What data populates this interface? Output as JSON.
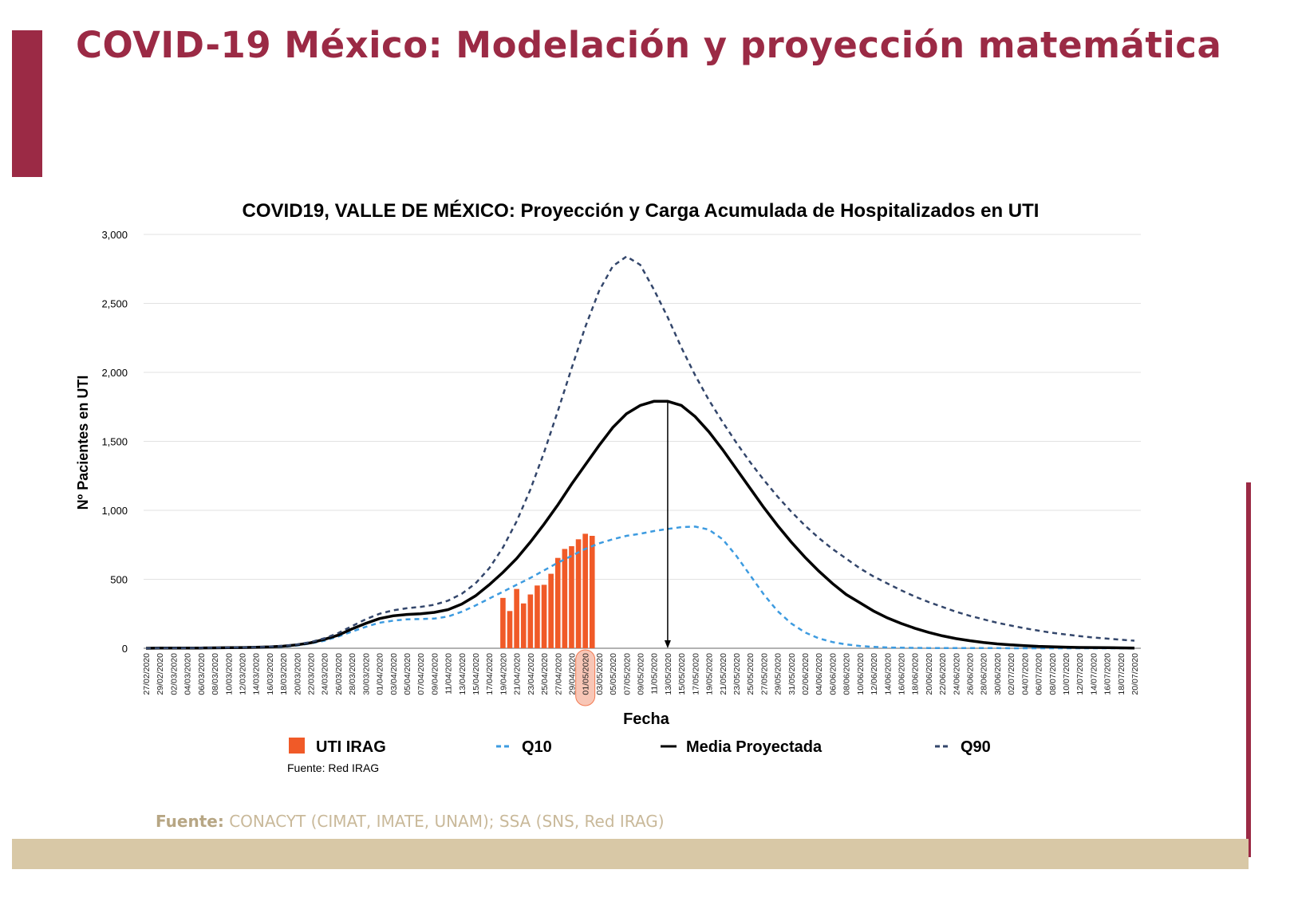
{
  "slide": {
    "title": "COVID-19 México: Modelación y proyección matemática",
    "source_label": "Fuente:",
    "source_text": " CONACYT (CIMAT, IMATE, UNAM);   SSA (SNS, Red IRAG)"
  },
  "colors": {
    "accent": "#9b2a45",
    "bars": "#f05a28",
    "q10": "#3d9be0",
    "media": "#000000",
    "q90": "#33466b"
  },
  "chart_data": {
    "type": "line",
    "title": "COVID19, VALLE DE MÉXICO: Proyección y Carga Acumulada de Hospitalizados en UTI",
    "xlabel": "Fecha",
    "ylabel": "Nº Pacientes en UTI",
    "ylim": [
      0,
      3000
    ],
    "yticks": [
      "0",
      "500",
      "1,000",
      "1,500",
      "2,000",
      "2,500",
      "3,000"
    ],
    "grid": true,
    "legend_placement": "bottom",
    "x": [
      "27/02/2020",
      "29/02/2020",
      "02/03/2020",
      "04/03/2020",
      "06/03/2020",
      "08/03/2020",
      "10/03/2020",
      "12/03/2020",
      "14/03/2020",
      "16/03/2020",
      "18/03/2020",
      "20/03/2020",
      "22/03/2020",
      "24/03/2020",
      "26/03/2020",
      "28/03/2020",
      "30/03/2020",
      "01/04/2020",
      "03/04/2020",
      "05/04/2020",
      "07/04/2020",
      "09/04/2020",
      "11/04/2020",
      "13/04/2020",
      "15/04/2020",
      "17/04/2020",
      "19/04/2020",
      "21/04/2020",
      "23/04/2020",
      "25/04/2020",
      "27/04/2020",
      "29/04/2020",
      "01/05/2020",
      "03/05/2020",
      "05/05/2020",
      "07/05/2020",
      "09/05/2020",
      "11/05/2020",
      "13/05/2020",
      "15/05/2020",
      "17/05/2020",
      "19/05/2020",
      "21/05/2020",
      "23/05/2020",
      "25/05/2020",
      "27/05/2020",
      "29/05/2020",
      "31/05/2020",
      "02/06/2020",
      "04/06/2020",
      "06/06/2020",
      "08/06/2020",
      "10/06/2020",
      "12/06/2020",
      "14/06/2020",
      "16/06/2020",
      "18/06/2020",
      "20/06/2020",
      "22/06/2020",
      "24/06/2020",
      "26/06/2020",
      "28/06/2020",
      "30/06/2020",
      "02/07/2020",
      "04/07/2020",
      "06/07/2020",
      "08/07/2020",
      "10/07/2020",
      "12/07/2020",
      "14/07/2020",
      "16/07/2020",
      "18/07/2020",
      "20/07/2020"
    ],
    "highlighted_tick": "01/05/2020",
    "peak_marker": {
      "date": "13/05/2020",
      "value": 1790
    },
    "bars": {
      "name": "UTI IRAG",
      "note": "Fuente: Red IRAG",
      "dates": [
        "19/04/2020",
        "20/04/2020",
        "21/04/2020",
        "22/04/2020",
        "23/04/2020",
        "24/04/2020",
        "25/04/2020",
        "26/04/2020",
        "27/04/2020",
        "28/04/2020",
        "29/04/2020",
        "30/04/2020",
        "01/05/2020",
        "02/05/2020"
      ],
      "values": [
        365,
        270,
        430,
        325,
        390,
        455,
        460,
        540,
        655,
        720,
        740,
        790,
        830,
        815
      ]
    },
    "series": [
      {
        "name": "Q10",
        "style": "dashed",
        "values": [
          0,
          0,
          1,
          1,
          2,
          2,
          3,
          4,
          5,
          7,
          10,
          20,
          35,
          55,
          85,
          120,
          155,
          185,
          200,
          210,
          212,
          215,
          230,
          265,
          310,
          360,
          410,
          460,
          510,
          565,
          620,
          670,
          720,
          760,
          790,
          815,
          830,
          850,
          865,
          878,
          882,
          860,
          790,
          670,
          530,
          390,
          270,
          180,
          115,
          72,
          45,
          28,
          17,
          10,
          6,
          4,
          3,
          2,
          2,
          1,
          1,
          1,
          1,
          0,
          0,
          0,
          0,
          0,
          0,
          0,
          0,
          0,
          0
        ]
      },
      {
        "name": "Media Proyectada",
        "style": "solid",
        "values": [
          0,
          1,
          1,
          2,
          2,
          3,
          4,
          5,
          7,
          10,
          15,
          25,
          40,
          65,
          95,
          140,
          180,
          215,
          235,
          245,
          250,
          260,
          280,
          320,
          380,
          460,
          550,
          650,
          770,
          900,
          1040,
          1190,
          1330,
          1470,
          1600,
          1700,
          1760,
          1790,
          1790,
          1760,
          1680,
          1570,
          1440,
          1300,
          1160,
          1020,
          890,
          770,
          660,
          560,
          470,
          390,
          330,
          270,
          220,
          180,
          145,
          115,
          90,
          70,
          55,
          42,
          32,
          25,
          19,
          14,
          11,
          8,
          6,
          5,
          4,
          3,
          2
        ]
      },
      {
        "name": "Q90",
        "style": "dashed",
        "values": [
          0,
          1,
          1,
          2,
          3,
          4,
          5,
          6,
          8,
          12,
          18,
          28,
          45,
          72,
          110,
          160,
          210,
          250,
          275,
          290,
          300,
          315,
          345,
          395,
          470,
          580,
          730,
          920,
          1150,
          1420,
          1720,
          2030,
          2330,
          2590,
          2770,
          2840,
          2780,
          2600,
          2400,
          2180,
          1980,
          1800,
          1640,
          1490,
          1350,
          1220,
          1100,
          990,
          890,
          800,
          720,
          650,
          580,
          520,
          470,
          420,
          375,
          335,
          300,
          265,
          235,
          210,
          185,
          165,
          145,
          128,
          112,
          100,
          88,
          78,
          70,
          62,
          55
        ]
      }
    ]
  }
}
